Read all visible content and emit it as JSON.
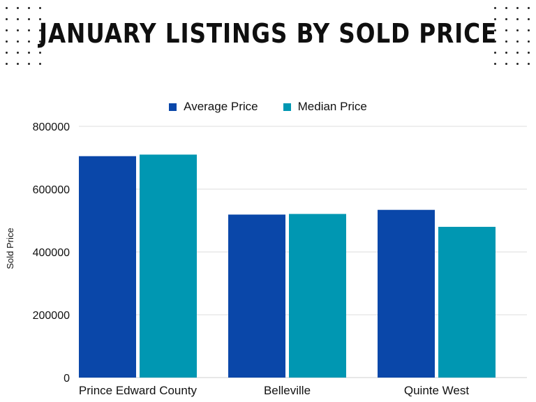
{
  "title": "JANUARY LISTINGS BY SOLD PRICE",
  "colors": {
    "average": "#0a47a9",
    "median": "#0097b2"
  },
  "chart_data": {
    "type": "bar",
    "title": "JANUARY LISTINGS BY SOLD PRICE",
    "categories": [
      "Prince Edward County",
      "Belleville",
      "Quinte West"
    ],
    "series": [
      {
        "name": "Average Price",
        "values": [
          705000,
          519000,
          534000
        ]
      },
      {
        "name": "Median Price",
        "values": [
          710000,
          521000,
          480000
        ]
      }
    ],
    "xlabel": "",
    "ylabel": "Sold Price",
    "ylim": [
      0,
      800000
    ],
    "yticks": [
      "0",
      "200000",
      "400000",
      "600000",
      "800000"
    ],
    "grid": true,
    "legend": "top"
  }
}
